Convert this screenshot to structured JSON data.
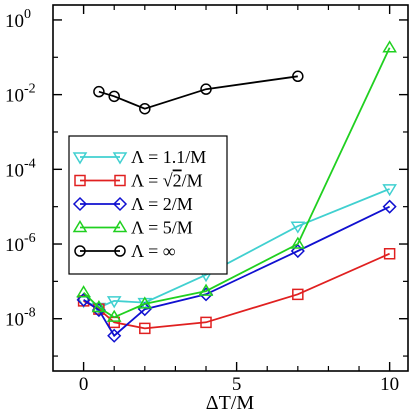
{
  "chart_data": {
    "type": "line",
    "title": "",
    "xlabel": "ΔT/M",
    "ylabel": "",
    "xlim": [
      -1,
      10.6
    ],
    "ylim_log10": [
      -9.4,
      0.4
    ],
    "y_scale": "log",
    "x_ticks": [
      0,
      5,
      10
    ],
    "y_ticks": [
      {
        "exp": 0,
        "base": "10",
        "sup": "0"
      },
      {
        "exp": -2,
        "base": "10",
        "sup": "-2"
      },
      {
        "exp": -4,
        "base": "10",
        "sup": "-4"
      },
      {
        "exp": -6,
        "base": "10",
        "sup": "-6"
      },
      {
        "exp": -8,
        "base": "10",
        "sup": "-8"
      }
    ],
    "grid": false,
    "legend_position": "center-left",
    "series": [
      {
        "name": "Λ = 1.1/M",
        "legend_prefix": "Λ = 1.1/M",
        "legend_suffix": "",
        "color": "#40d0d0",
        "marker": "triangle-down",
        "x": [
          0,
          0.5,
          1,
          2,
          4,
          7,
          10
        ],
        "y": [
          3e-08,
          2e-08,
          3e-08,
          2.7e-08,
          1.5e-07,
          3e-06,
          3e-05
        ]
      },
      {
        "name": "Λ = √2/M",
        "legend_prefix": "Λ = ",
        "legend_root": "2",
        "legend_suffix": "/M",
        "color": "#e02020",
        "marker": "square",
        "x": [
          0,
          0.5,
          1,
          2,
          4,
          7,
          10
        ],
        "y": [
          3e-08,
          1.8e-08,
          8e-09,
          5.5e-09,
          8e-09,
          4.5e-08,
          5.5e-07
        ]
      },
      {
        "name": "Λ = 2/M",
        "legend_prefix": "Λ = 2/M",
        "legend_suffix": "",
        "color": "#1010d0",
        "marker": "diamond",
        "x": [
          0,
          0.5,
          1,
          2,
          4,
          7,
          10
        ],
        "y": [
          3.2e-08,
          1.7e-08,
          3.5e-09,
          1.8e-08,
          4.5e-08,
          6.5e-07,
          1e-05
        ]
      },
      {
        "name": "Λ = 5/M",
        "legend_prefix": "Λ = 5/M",
        "legend_suffix": "",
        "color": "#20d020",
        "marker": "triangle-up",
        "x": [
          0,
          0.5,
          1,
          2,
          4,
          7,
          10
        ],
        "y": [
          5e-08,
          2e-08,
          1.1e-08,
          2.5e-08,
          5.5e-08,
          1e-06,
          0.18
        ]
      },
      {
        "name": "Λ = ∞",
        "legend_prefix": "Λ = ∞",
        "legend_suffix": "",
        "color": "#000000",
        "marker": "circle",
        "x": [
          0.5,
          1,
          2,
          4,
          7
        ],
        "y": [
          0.012,
          0.009,
          0.0042,
          0.014,
          0.031
        ]
      }
    ]
  }
}
